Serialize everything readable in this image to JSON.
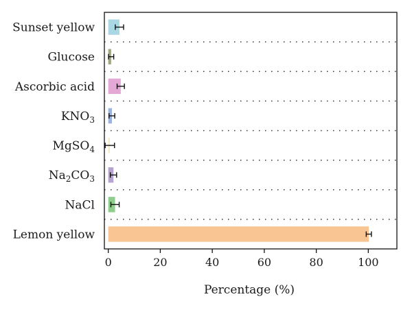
{
  "chart_data": {
    "type": "bar",
    "orientation": "horizontal",
    "categories": [
      {
        "label": "Sunset yellow"
      },
      {
        "label": "Glucose"
      },
      {
        "label": "Ascorbic acid"
      },
      {
        "label": "KNO",
        "sub": "3"
      },
      {
        "label": "MgSO",
        "sub": "4"
      },
      {
        "parts": [
          {
            "t": "Na"
          },
          {
            "s": "2"
          },
          {
            "t": "CO"
          },
          {
            "s": "3"
          }
        ]
      },
      {
        "label": "NaCl"
      },
      {
        "label": "Lemon yellow"
      }
    ],
    "values": [
      4.3,
      1.1,
      4.8,
      1.4,
      0.6,
      2.0,
      2.6,
      100.2
    ],
    "errors": [
      1.6,
      1.0,
      1.4,
      1.1,
      1.8,
      1.2,
      1.6,
      1.0
    ],
    "colors": [
      "#a9d8e4",
      "#a3a57a",
      "#e3a8d6",
      "#9db3e0",
      "#f2eec4",
      "#b7a3cf",
      "#8fcd8c",
      "#f9c592"
    ],
    "xlabel": "Percentage (%)",
    "xticks": [
      0,
      20,
      40,
      60,
      80,
      100
    ],
    "xlim": [
      -1.5,
      111
    ],
    "grid": "dotted separators between categories",
    "legend": "none"
  }
}
